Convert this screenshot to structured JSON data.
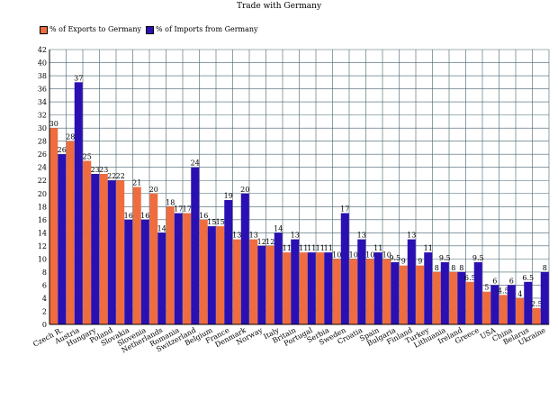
{
  "chart_data": {
    "type": "bar",
    "title": "Trade with Germany",
    "xlabel": "",
    "ylabel": "",
    "ylim": [
      0,
      42
    ],
    "yticks": [
      0,
      2,
      4,
      6,
      8,
      10,
      12,
      14,
      16,
      18,
      20,
      22,
      24,
      26,
      28,
      30,
      32,
      34,
      36,
      38,
      40,
      42
    ],
    "grid": true,
    "legend_position": "top-left",
    "categories": [
      "Czech R.",
      "Austria",
      "Hungary",
      "Poland",
      "Slovakia",
      "Slovenia",
      "Netherlands",
      "Romania",
      "Switzerland",
      "Belgium",
      "France",
      "Denmark",
      "Norway",
      "Italy",
      "Britain",
      "Portugal",
      "Serbia",
      "Sweden",
      "Croatia",
      "Spain",
      "Bulgaria",
      "Finland",
      "Turkey",
      "Lithuania",
      "Ireland",
      "Greece",
      "USA",
      "China",
      "Belarus",
      "Ukraine"
    ],
    "series": [
      {
        "name": "% of Exports to Germany",
        "color": "#ef6c3f",
        "values": [
          30,
          28,
          25,
          23,
          22,
          21,
          20,
          18,
          17,
          16,
          15,
          13,
          13,
          12,
          11,
          11,
          11,
          10,
          10,
          10,
          10,
          9,
          9,
          8,
          8,
          6.5,
          5,
          4.5,
          4,
          2.5
        ]
      },
      {
        "name": "% of Imports from Germany",
        "color": "#2a0fb3",
        "values": [
          26,
          37,
          23,
          22,
          16,
          16,
          14,
          17,
          24,
          15,
          19,
          20,
          12,
          14,
          13,
          11,
          11,
          17,
          13,
          11,
          9.5,
          13,
          11,
          9.5,
          8,
          9.5,
          6,
          6,
          6.5,
          8
        ]
      }
    ]
  }
}
